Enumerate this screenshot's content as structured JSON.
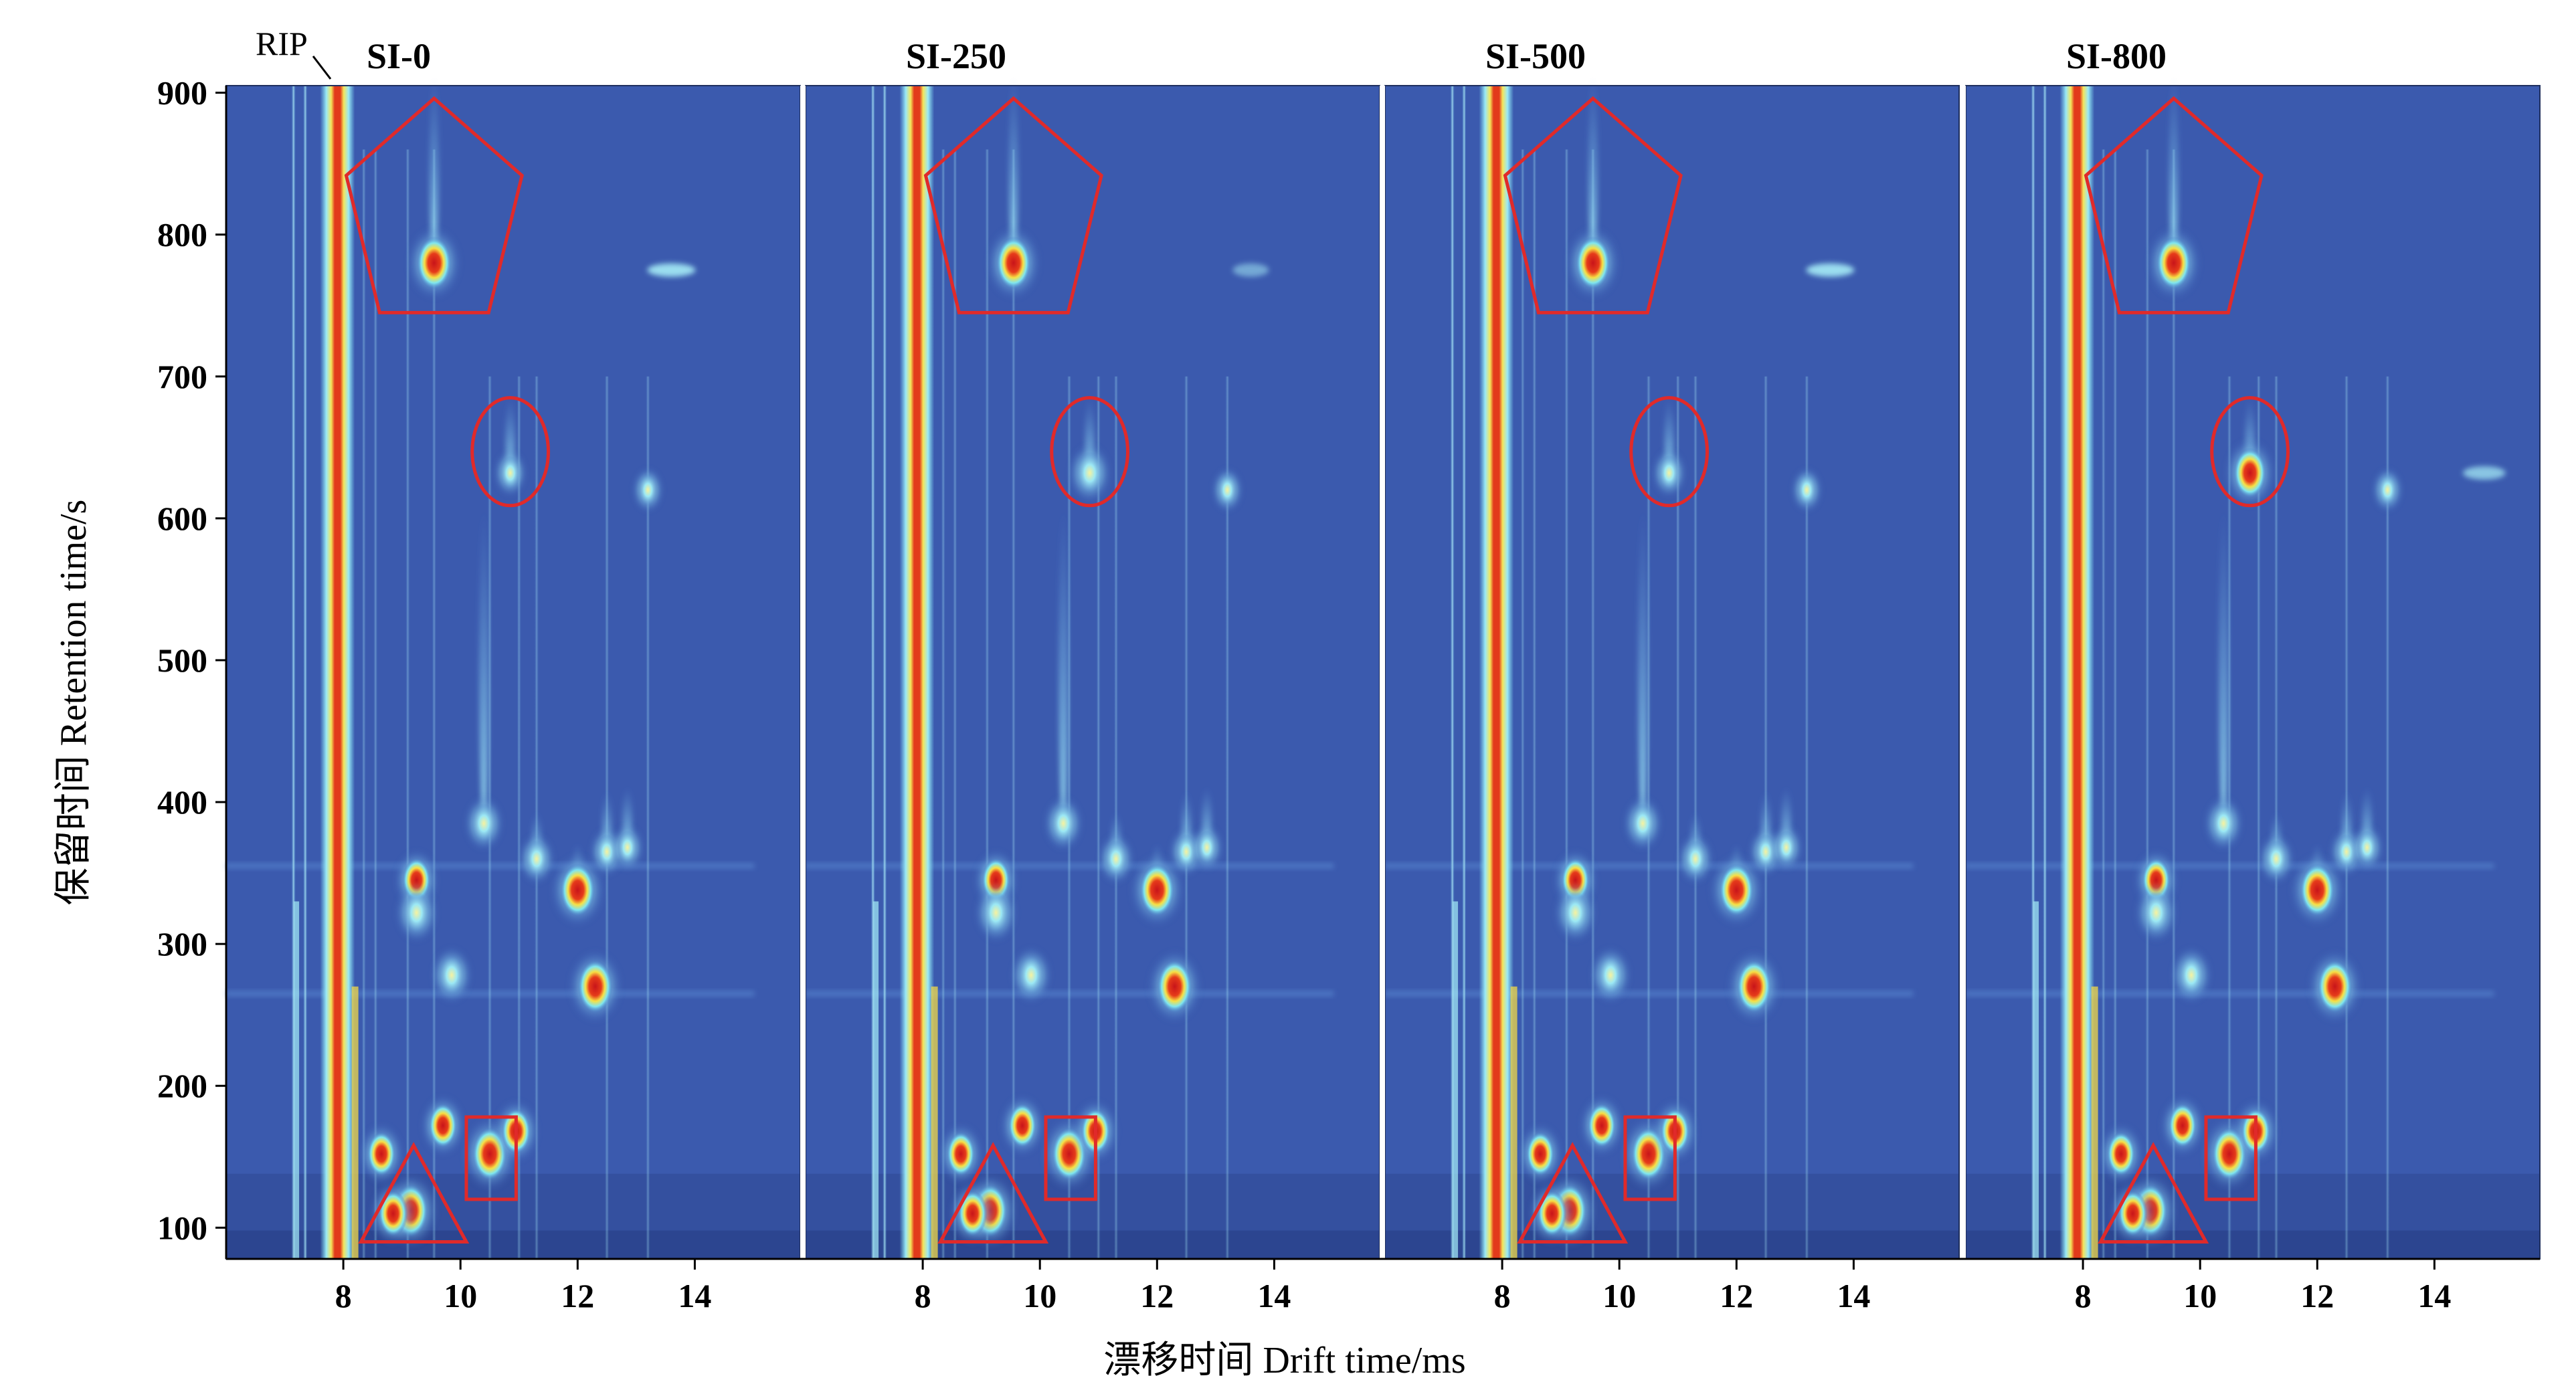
{
  "chart_data": {
    "type": "heatmap",
    "xlabel": "漂移时间 Drift time/ms",
    "ylabel": "保留时间 Retention time/s",
    "xlim": [
      6.0,
      15.8
    ],
    "ylim": [
      78,
      905
    ],
    "xticks": [
      8,
      10,
      12,
      14
    ],
    "yticks": [
      100,
      200,
      300,
      400,
      500,
      600,
      700,
      800,
      900
    ],
    "rip_label": "RIP",
    "rip_drift_time": 7.9,
    "panels": [
      {
        "title": "SI-0",
        "spot_intensity_1": 0.35,
        "spot_intensity_2": 1.0
      },
      {
        "title": "SI-250",
        "spot_intensity_1": 0.65,
        "spot_intensity_2": 0.35
      },
      {
        "title": "SI-500",
        "spot_intensity_1": 0.4,
        "spot_intensity_2": 1.0
      },
      {
        "title": "SI-800",
        "spot_intensity_1": 0.9,
        "spot_intensity_2": 0.7
      }
    ],
    "peaks": [
      {
        "x": 9.55,
        "y": 780,
        "intensity": 1.0,
        "tail": 130
      },
      {
        "x": 10.85,
        "y": 632,
        "intensity": 0.6,
        "tail": 50
      },
      {
        "x": 12.0,
        "y": 338,
        "intensity": 1.0,
        "tail": 30
      },
      {
        "x": 12.3,
        "y": 270,
        "intensity": 1.0,
        "tail": 15
      },
      {
        "x": 10.5,
        "y": 152,
        "intensity": 1.0,
        "tail": 15
      },
      {
        "x": 10.95,
        "y": 168,
        "intensity": 0.75,
        "tail": 10
      },
      {
        "x": 9.15,
        "y": 112,
        "intensity": 1.0,
        "tail": 20
      },
      {
        "x": 8.85,
        "y": 110,
        "intensity": 0.75,
        "tail": 10
      },
      {
        "x": 10.4,
        "y": 385,
        "intensity": 0.55,
        "tail": 220
      },
      {
        "x": 9.25,
        "y": 345,
        "intensity": 0.7,
        "tail": 10
      },
      {
        "x": 9.25,
        "y": 322,
        "intensity": 0.65,
        "tail": 10
      },
      {
        "x": 9.85,
        "y": 278,
        "intensity": 0.6,
        "tail": 10
      },
      {
        "x": 8.65,
        "y": 152,
        "intensity": 0.7,
        "tail": 10
      },
      {
        "x": 9.7,
        "y": 172,
        "intensity": 0.7,
        "tail": 10
      },
      {
        "x": 11.3,
        "y": 360,
        "intensity": 0.45,
        "tail": 30
      },
      {
        "x": 12.5,
        "y": 365,
        "intensity": 0.4,
        "tail": 40
      },
      {
        "x": 12.85,
        "y": 368,
        "intensity": 0.35,
        "tail": 40
      },
      {
        "x": 13.2,
        "y": 620,
        "intensity": 0.3,
        "tail": 10
      }
    ],
    "markers": [
      {
        "shape": "pentagon",
        "cx": 9.55,
        "top": 896,
        "bottom": 745,
        "halfwidth": 1.5
      },
      {
        "shape": "ellipse",
        "cx": 10.85,
        "cy": 647,
        "rx": 0.65,
        "ry": 38
      },
      {
        "shape": "rect",
        "x0": 10.1,
        "x1": 10.95,
        "y0": 120,
        "y1": 178
      },
      {
        "shape": "triangle",
        "cx": 9.2,
        "top": 158,
        "bottom": 90,
        "halfwidth": 0.9
      }
    ]
  }
}
